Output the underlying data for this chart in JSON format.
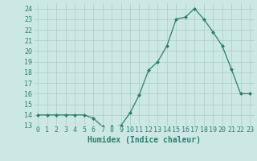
{
  "x": [
    0,
    1,
    2,
    3,
    4,
    5,
    6,
    7,
    8,
    9,
    10,
    11,
    12,
    13,
    14,
    15,
    16,
    17,
    18,
    19,
    20,
    21,
    22,
    23
  ],
  "y": [
    14,
    14,
    14,
    14,
    14,
    14,
    13.7,
    12.9,
    12.9,
    13.0,
    14.2,
    15.9,
    18.2,
    19.0,
    20.5,
    23.0,
    23.2,
    24.0,
    23.0,
    21.8,
    20.5,
    18.3,
    16.0,
    16.0
  ],
  "line_color": "#2d7d6e",
  "marker": "D",
  "marker_size": 2,
  "bg_color": "#cce8e4",
  "grid_color": "#aaccc8",
  "xlabel": "Humidex (Indice chaleur)",
  "xlabel_fontsize": 7,
  "tick_fontsize": 6,
  "ylim": [
    13,
    24.5
  ],
  "yticks": [
    13,
    14,
    15,
    16,
    17,
    18,
    19,
    20,
    21,
    22,
    23,
    24
  ],
  "xticks": [
    0,
    1,
    2,
    3,
    4,
    5,
    6,
    7,
    8,
    9,
    10,
    11,
    12,
    13,
    14,
    15,
    16,
    17,
    18,
    19,
    20,
    21,
    22,
    23
  ],
  "xlim": [
    -0.5,
    23.5
  ]
}
